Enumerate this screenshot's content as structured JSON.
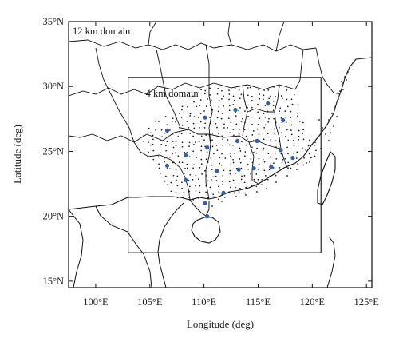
{
  "map": {
    "xlabel": "Longitude (deg)",
    "ylabel": "Latitude (deg)",
    "lon_range": [
      97.5,
      125.5
    ],
    "lat_range": [
      14.5,
      35.0
    ],
    "x_ticks": [
      {
        "value": 100,
        "label": "100°E"
      },
      {
        "value": 105,
        "label": "105°E"
      },
      {
        "value": 110,
        "label": "110°E"
      },
      {
        "value": 115,
        "label": "115°E"
      },
      {
        "value": 120,
        "label": "120°E"
      },
      {
        "value": 125,
        "label": "125°E"
      }
    ],
    "y_ticks": [
      {
        "value": 15,
        "label": "15°N"
      },
      {
        "value": 20,
        "label": "20°N"
      },
      {
        "value": 25,
        "label": "25°N"
      },
      {
        "value": 30,
        "label": "30°N"
      },
      {
        "value": 35,
        "label": "35°N"
      }
    ],
    "outer_domain": {
      "label": "12 km domain"
    },
    "inner_domain": {
      "label": "4 km domain",
      "lon": [
        103.0,
        120.8
      ],
      "lat": [
        17.2,
        30.7
      ]
    },
    "station_color": "#2f5fb3",
    "stations": [
      {
        "lon": 106.6,
        "lat": 26.6
      },
      {
        "lon": 110.1,
        "lat": 27.6
      },
      {
        "lon": 112.9,
        "lat": 28.2
      },
      {
        "lon": 115.9,
        "lat": 28.7
      },
      {
        "lon": 117.3,
        "lat": 27.4
      },
      {
        "lon": 108.3,
        "lat": 24.7
      },
      {
        "lon": 110.3,
        "lat": 25.3
      },
      {
        "lon": 113.1,
        "lat": 25.8
      },
      {
        "lon": 114.9,
        "lat": 25.8
      },
      {
        "lon": 117.1,
        "lat": 25.1
      },
      {
        "lon": 106.6,
        "lat": 23.9
      },
      {
        "lon": 108.3,
        "lat": 22.8
      },
      {
        "lon": 111.2,
        "lat": 23.5
      },
      {
        "lon": 113.2,
        "lat": 23.6
      },
      {
        "lon": 114.6,
        "lat": 23.7
      },
      {
        "lon": 116.2,
        "lat": 23.8
      },
      {
        "lon": 118.2,
        "lat": 24.5
      },
      {
        "lon": 111.8,
        "lat": 21.8
      },
      {
        "lon": 110.1,
        "lat": 21.0
      },
      {
        "lon": 110.3,
        "lat": 20.0
      }
    ]
  }
}
